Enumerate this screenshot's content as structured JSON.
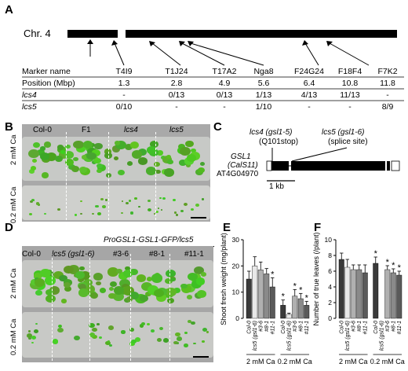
{
  "panels": {
    "a": "A",
    "b": "B",
    "c": "C",
    "d": "D",
    "e": "E",
    "f": "F"
  },
  "panel_a": {
    "chromosome": "Chr. 4",
    "row_labels": {
      "marker": "Marker name",
      "position": "Position (Mbp)",
      "lcs4": "lcs4",
      "lcs5": "lcs5"
    },
    "markers": [
      {
        "name": "T4I9",
        "position": "1.3",
        "lcs4": "-",
        "lcs5": "0/10"
      },
      {
        "name": "T1J24",
        "position": "2.8",
        "lcs4": "0/13",
        "lcs5": "-"
      },
      {
        "name": "T17A2",
        "position": "4.9",
        "lcs4": "0/13",
        "lcs5": "-"
      },
      {
        "name": "Nga8",
        "position": "5.6",
        "lcs4": "1/13",
        "lcs5": "1/10"
      },
      {
        "name": "F24G24",
        "position": "6.4",
        "lcs4": "4/13",
        "lcs5": "-"
      },
      {
        "name": "F18F4",
        "position": "10.8",
        "lcs4": "11/13",
        "lcs5": "-"
      },
      {
        "name": "F7K2",
        "position": "11.8",
        "lcs4": "-",
        "lcs5": "8/9"
      }
    ]
  },
  "panel_b": {
    "columns": [
      "Col-0",
      "F1",
      "lcs4",
      "lcs5"
    ],
    "rows": [
      "2 mM Ca",
      "0.2 mM Ca"
    ]
  },
  "panel_c": {
    "lcs4_label": "lcs4 (gsl1-5)",
    "lcs4_sub": "(Q101stop)",
    "lcs5_label": "lcs5 (gsl1-6)",
    "lcs5_sub": "(splice site)",
    "gene_name": "GSL1",
    "gene_alias": "(CalS11)",
    "gene_id": "AT4G04970",
    "scale": "1 kb"
  },
  "panel_d": {
    "construct": "ProGSL1-GSL1-GFP/lcs5",
    "columns": [
      "Col-0",
      "lcs5 (gsl1-6)",
      "#3-6",
      "#8-1",
      "#11-1"
    ],
    "rows": [
      "2 mM Ca",
      "0.2 mM Ca"
    ]
  },
  "chart_data": [
    {
      "type": "bar",
      "ylabel": "Shoot fresh weight (mg/plant)",
      "ylim": [
        0,
        30
      ],
      "yticks": [
        0,
        10,
        20,
        30
      ],
      "categories": [
        "Col-0",
        "lcs5 (gsl1-6)",
        "#3-6",
        "#8-1",
        "#11-1",
        "Col-0",
        "lcs5 (gsl1-6)",
        "#3-6",
        "#8-1",
        "#11-1"
      ],
      "groups": [
        "2 mM Ca",
        "0.2 mM Ca"
      ],
      "values": [
        15,
        20,
        18.5,
        17,
        12,
        5,
        1.5,
        8.5,
        7.5,
        5
      ],
      "errors": [
        3,
        3.5,
        3,
        2,
        3.5,
        2,
        0.5,
        2.5,
        2,
        1.5
      ],
      "significant": [
        false,
        false,
        false,
        false,
        true,
        true,
        false,
        true,
        true,
        true
      ],
      "colors": [
        "#3a3a3a",
        "#e8e8e8",
        "#b0b0b0",
        "#8a8a8a",
        "#5a5a5a",
        "#3a3a3a",
        "#e8e8e8",
        "#b0b0b0",
        "#8a8a8a",
        "#5a5a5a"
      ]
    },
    {
      "type": "bar",
      "ylabel": "Number of true leaves (/plant)",
      "ylim": [
        0,
        10
      ],
      "yticks": [
        0,
        2,
        4,
        6,
        8,
        10
      ],
      "categories": [
        "Col-0",
        "lcs5 (gsl1-6)",
        "#3-6",
        "#8-1",
        "#11-1",
        "Col-0",
        "lcs5 (gsl1-6)",
        "#3-6",
        "#8-1",
        "#11-1"
      ],
      "groups": [
        "2 mM Ca",
        "0.2 mM Ca"
      ],
      "values": [
        7.5,
        6.5,
        6.2,
        6.2,
        5.8,
        7,
        0,
        6.2,
        5.8,
        5.5
      ],
      "errors": [
        0.8,
        1.0,
        0.6,
        0.6,
        1.0,
        0.8,
        0,
        0.5,
        0.5,
        0.5
      ],
      "significant": [
        false,
        false,
        false,
        false,
        false,
        true,
        false,
        true,
        true,
        true
      ],
      "colors": [
        "#3a3a3a",
        "#e8e8e8",
        "#b0b0b0",
        "#8a8a8a",
        "#5a5a5a",
        "#3a3a3a",
        "#e8e8e8",
        "#b0b0b0",
        "#8a8a8a",
        "#5a5a5a"
      ]
    }
  ]
}
